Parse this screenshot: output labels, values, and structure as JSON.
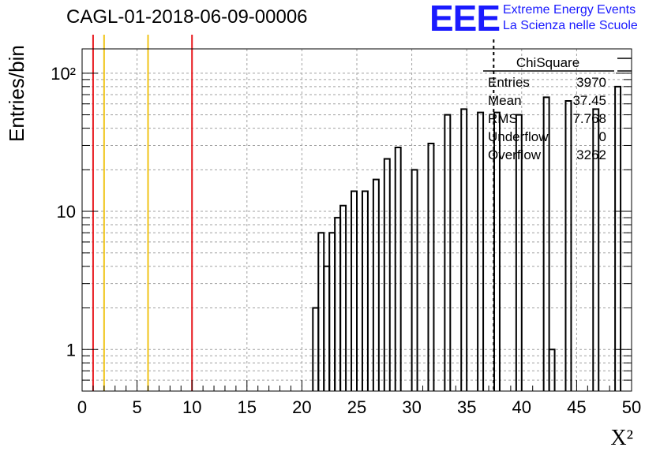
{
  "header": {
    "run_title": "CAGL-01-2018-06-09-00006",
    "logo_mark": "EEE",
    "logo_line1": "Extreme Energy Events",
    "logo_line2": "La Scienza nelle Scuole"
  },
  "stats_box": {
    "title": "ChiSquare",
    "rows": [
      {
        "label": "Entries",
        "value": "3970"
      },
      {
        "label": "Mean",
        "value": "37.45"
      },
      {
        "label": "RMS",
        "value": "7.768"
      },
      {
        "label": "Underflow",
        "value": "0"
      },
      {
        "label": "Overflow",
        "value": "3262"
      }
    ]
  },
  "colors": {
    "red_line": "#e8191e",
    "yellow_line": "#f0c419",
    "histogram": "#000000",
    "grid": "#a0a0a0",
    "logo": "#1a1aff"
  },
  "chart_data": {
    "type": "bar",
    "histogram_style": "step",
    "xlabel": "X²",
    "ylabel": "Entries/bin",
    "xlim": [
      0,
      50
    ],
    "ylim": [
      0.5,
      150
    ],
    "y_scale": "log",
    "grid": true,
    "x_ticks": [
      "0",
      "5",
      "10",
      "15",
      "20",
      "25",
      "30",
      "35",
      "40",
      "45",
      "50"
    ],
    "y_ticks": [
      "1",
      "10",
      "10²"
    ],
    "bin_width": 0.5,
    "bins": [
      {
        "x": 21.0,
        "y": 2
      },
      {
        "x": 21.5,
        "y": 7
      },
      {
        "x": 22.0,
        "y": 4
      },
      {
        "x": 22.5,
        "y": 7
      },
      {
        "x": 23.0,
        "y": 9
      },
      {
        "x": 23.5,
        "y": 11
      },
      {
        "x": 24.0,
        "y": 0
      },
      {
        "x": 24.5,
        "y": 14
      },
      {
        "x": 25.0,
        "y": 0
      },
      {
        "x": 25.5,
        "y": 14
      },
      {
        "x": 26.0,
        "y": 0
      },
      {
        "x": 26.5,
        "y": 17
      },
      {
        "x": 27.0,
        "y": 0
      },
      {
        "x": 27.5,
        "y": 24
      },
      {
        "x": 28.0,
        "y": 0
      },
      {
        "x": 28.5,
        "y": 29
      },
      {
        "x": 29.0,
        "y": 0
      },
      {
        "x": 30.0,
        "y": 20
      },
      {
        "x": 31.0,
        "y": 0
      },
      {
        "x": 31.5,
        "y": 31
      },
      {
        "x": 32.0,
        "y": 0
      },
      {
        "x": 33.0,
        "y": 50
      },
      {
        "x": 33.5,
        "y": 0
      },
      {
        "x": 34.5,
        "y": 55
      },
      {
        "x": 35.0,
        "y": 0
      },
      {
        "x": 36.0,
        "y": 52
      },
      {
        "x": 36.5,
        "y": 0
      },
      {
        "x": 37.5,
        "y": 52
      },
      {
        "x": 38.0,
        "y": 0
      },
      {
        "x": 39.5,
        "y": 50
      },
      {
        "x": 40.0,
        "y": 0
      },
      {
        "x": 42.0,
        "y": 67
      },
      {
        "x": 42.5,
        "y": 1
      },
      {
        "x": 44.0,
        "y": 63
      },
      {
        "x": 44.5,
        "y": 0
      },
      {
        "x": 46.5,
        "y": 55
      },
      {
        "x": 47.0,
        "y": 0
      },
      {
        "x": 48.5,
        "y": 80
      }
    ],
    "vertical_lines": [
      {
        "x": 1,
        "color": "red"
      },
      {
        "x": 2,
        "color": "yellow"
      },
      {
        "x": 6,
        "color": "yellow"
      },
      {
        "x": 10,
        "color": "red"
      },
      {
        "x": 37.45,
        "color": "black",
        "style": "dashed"
      }
    ]
  }
}
